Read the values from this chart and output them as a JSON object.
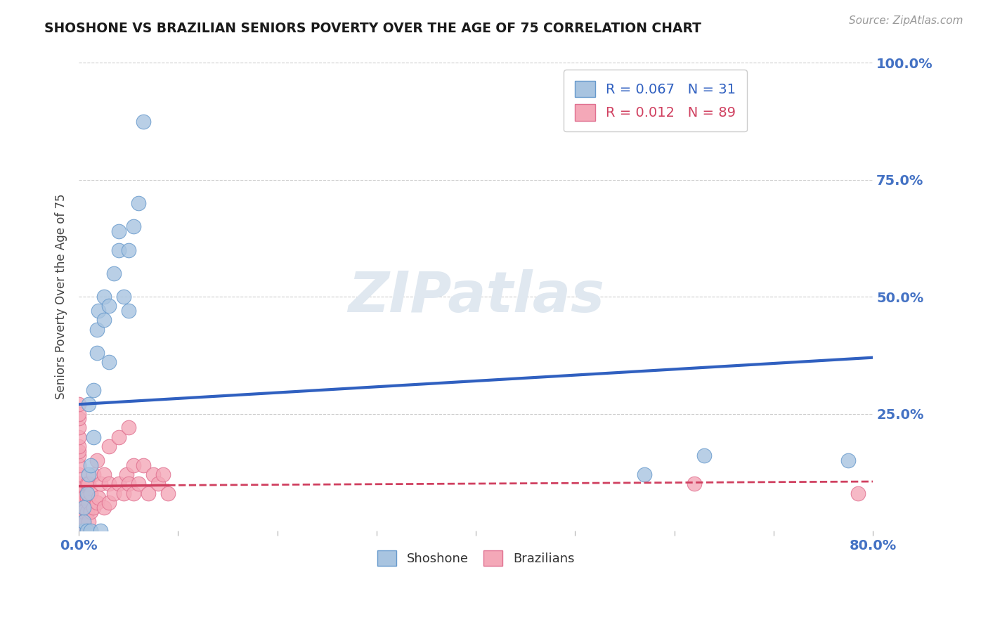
{
  "title": "SHOSHONE VS BRAZILIAN SENIORS POVERTY OVER THE AGE OF 75 CORRELATION CHART",
  "source_text": "Source: ZipAtlas.com",
  "ylabel": "Seniors Poverty Over the Age of 75",
  "xlim": [
    0.0,
    0.8
  ],
  "ylim": [
    0.0,
    1.0
  ],
  "watermark_text": "ZIPatlas",
  "shoshone_color": "#a8c4e0",
  "shoshone_edge": "#6699cc",
  "brazilian_color": "#f4a8b8",
  "brazilian_edge": "#e07090",
  "shoshone_R": 0.067,
  "shoshone_N": 31,
  "brazilian_R": 0.012,
  "brazilian_N": 89,
  "shoshone_line_color": "#3060c0",
  "brazilian_line_color": "#d04060",
  "shoshone_x": [
    0.005,
    0.005,
    0.005,
    0.008,
    0.008,
    0.01,
    0.01,
    0.012,
    0.012,
    0.015,
    0.015,
    0.018,
    0.018,
    0.02,
    0.022,
    0.025,
    0.025,
    0.03,
    0.03,
    0.035,
    0.04,
    0.04,
    0.045,
    0.05,
    0.05,
    0.055,
    0.06,
    0.065,
    0.57,
    0.63,
    0.775
  ],
  "shoshone_y": [
    0.0,
    0.02,
    0.05,
    0.0,
    0.08,
    0.12,
    0.27,
    0.0,
    0.14,
    0.2,
    0.3,
    0.38,
    0.43,
    0.47,
    0.0,
    0.45,
    0.5,
    0.36,
    0.48,
    0.55,
    0.6,
    0.64,
    0.5,
    0.47,
    0.6,
    0.65,
    0.7,
    0.875,
    0.12,
    0.16,
    0.15
  ],
  "brazilian_x": [
    0.0,
    0.0,
    0.0,
    0.0,
    0.0,
    0.0,
    0.0,
    0.0,
    0.0,
    0.0,
    0.0,
    0.0,
    0.0,
    0.0,
    0.0,
    0.0,
    0.0,
    0.0,
    0.0,
    0.0,
    0.0,
    0.0,
    0.0,
    0.0,
    0.0,
    0.0,
    0.0,
    0.0,
    0.0,
    0.0,
    0.0,
    0.0,
    0.0,
    0.0,
    0.0,
    0.0,
    0.0,
    0.0,
    0.0,
    0.0,
    0.0,
    0.0,
    0.0,
    0.0,
    0.0,
    0.0,
    0.0,
    0.0,
    0.005,
    0.005,
    0.005,
    0.005,
    0.008,
    0.008,
    0.008,
    0.01,
    0.01,
    0.01,
    0.012,
    0.012,
    0.015,
    0.015,
    0.018,
    0.018,
    0.02,
    0.022,
    0.025,
    0.025,
    0.03,
    0.03,
    0.03,
    0.035,
    0.04,
    0.04,
    0.045,
    0.048,
    0.05,
    0.05,
    0.055,
    0.055,
    0.06,
    0.065,
    0.07,
    0.075,
    0.08,
    0.085,
    0.09,
    0.785,
    0.62
  ],
  "brazilian_y": [
    0.0,
    0.0,
    0.0,
    0.0,
    0.0,
    0.0,
    0.0,
    0.0,
    0.0,
    0.0,
    0.0,
    0.0,
    0.0,
    0.0,
    0.0,
    0.0,
    0.0,
    0.0,
    0.0,
    0.0,
    0.0,
    0.0,
    0.0,
    0.0,
    0.0,
    0.02,
    0.04,
    0.05,
    0.06,
    0.07,
    0.08,
    0.09,
    0.1,
    0.12,
    0.14,
    0.16,
    0.17,
    0.18,
    0.2,
    0.22,
    0.24,
    0.25,
    0.27,
    0.0,
    0.0,
    0.0,
    0.0,
    0.0,
    0.0,
    0.02,
    0.04,
    0.07,
    0.04,
    0.07,
    0.1,
    0.02,
    0.06,
    0.1,
    0.04,
    0.08,
    0.05,
    0.12,
    0.06,
    0.15,
    0.07,
    0.1,
    0.05,
    0.12,
    0.06,
    0.1,
    0.18,
    0.08,
    0.1,
    0.2,
    0.08,
    0.12,
    0.1,
    0.22,
    0.08,
    0.14,
    0.1,
    0.14,
    0.08,
    0.12,
    0.1,
    0.12,
    0.08,
    0.08,
    0.1
  ],
  "shoshone_trendline": [
    0.0,
    0.8,
    0.27,
    0.37
  ],
  "brazilian_trendline_solid": [
    0.0,
    0.09,
    0.095,
    0.097
  ],
  "brazilian_trendline_dashed": [
    0.09,
    0.8,
    0.097,
    0.105
  ]
}
